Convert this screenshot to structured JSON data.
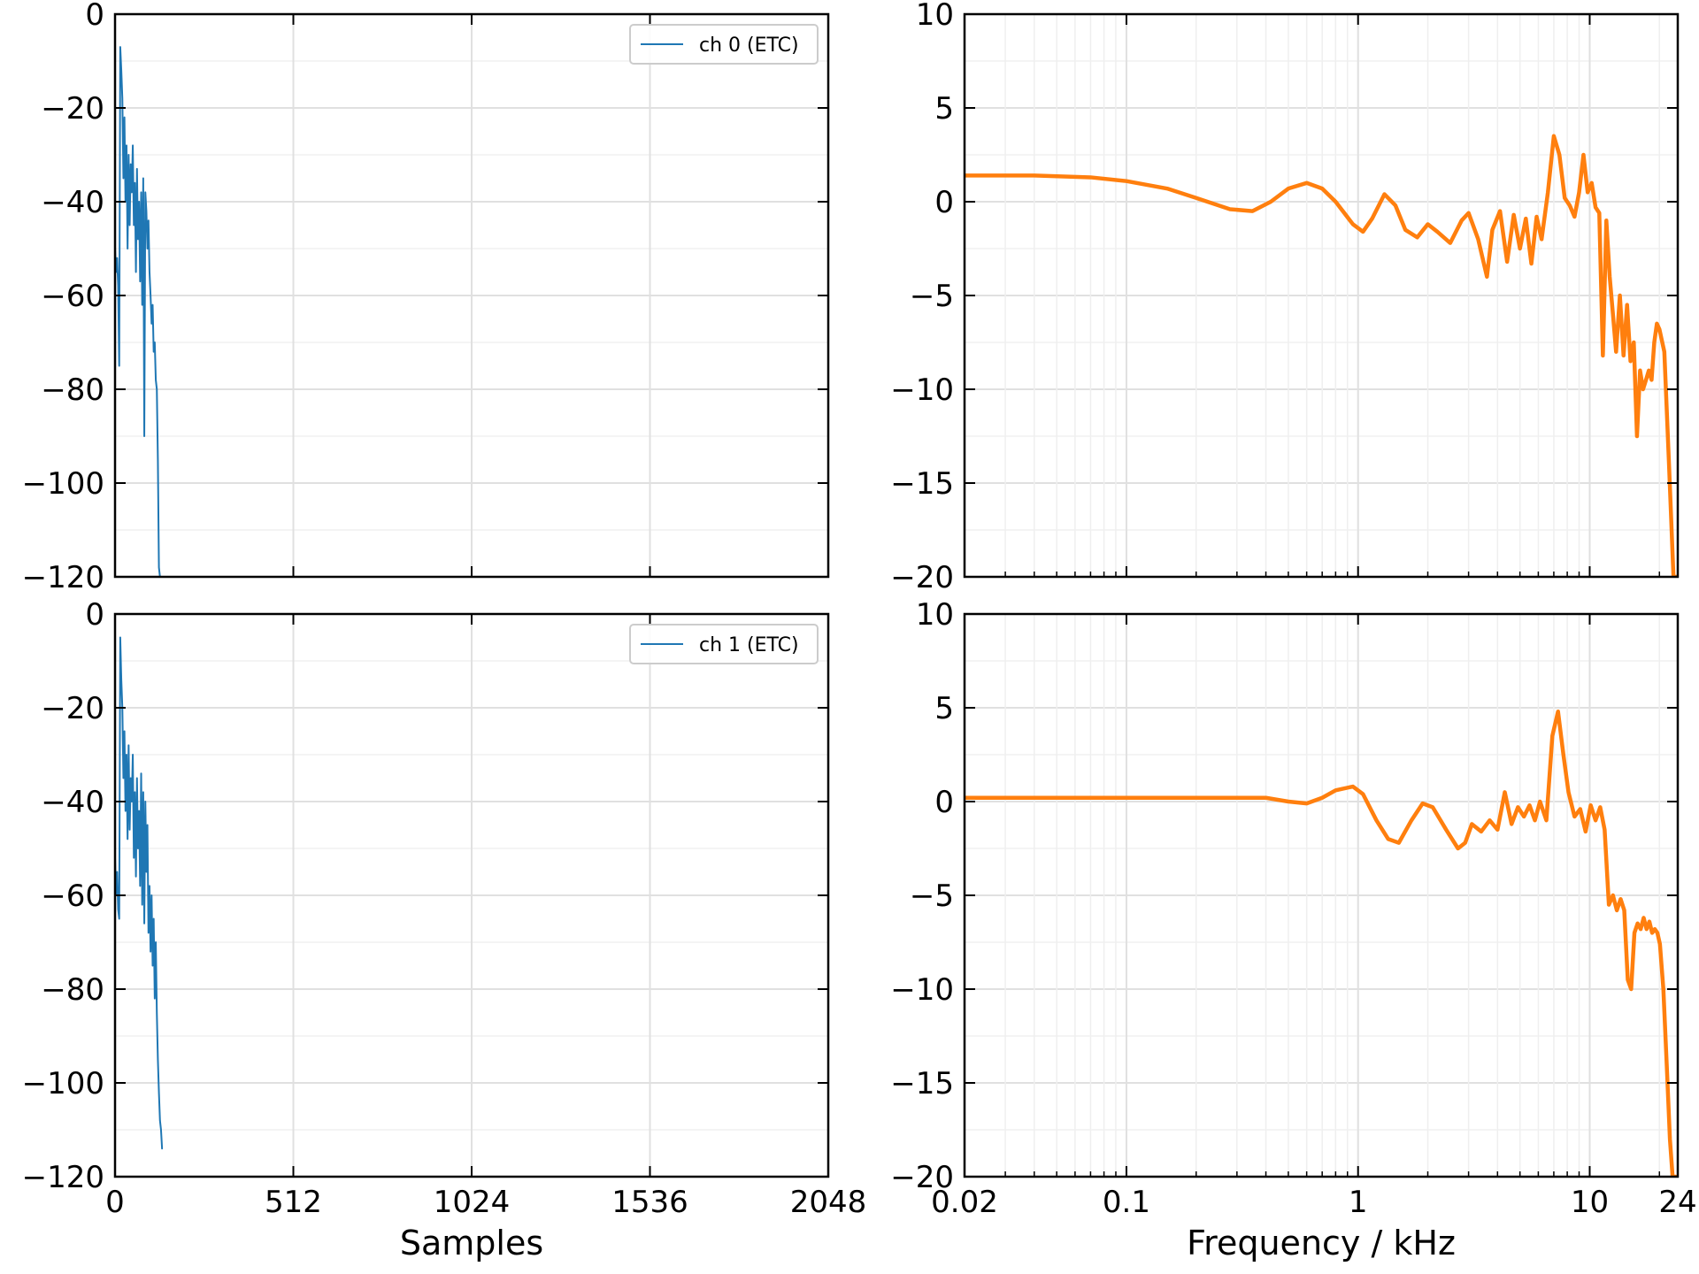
{
  "figure": {
    "rows": 2,
    "cols": 2,
    "sharex": true
  },
  "colors": {
    "etc": "#1f77b4",
    "freq": "#ff7f0e",
    "grid": "#e6e6e6",
    "frame": "#000000"
  },
  "chart_data": [
    {
      "id": "etc-ch0",
      "type": "line",
      "xscale": "linear",
      "xlim": [
        0,
        2048
      ],
      "ylim": [
        -120,
        0
      ],
      "xticks": [
        0,
        512,
        1024,
        1536,
        2048
      ],
      "yticks": [
        0,
        -20,
        -40,
        -60,
        -80,
        -100,
        -120
      ],
      "ytick_labels": [
        "0",
        "−20",
        "−40",
        "−60",
        "−80",
        "−100",
        "−120"
      ],
      "show_xticklabels": false,
      "xlabel": "",
      "ylabel": "",
      "grid": true,
      "legend": {
        "placement": "top-right",
        "entries": [
          "ch 0 (ETC)"
        ]
      },
      "series": [
        {
          "name": "ch 0 (ETC)",
          "color": "#1f77b4",
          "x": [
            0,
            3,
            6,
            9,
            12,
            15,
            18,
            21,
            24,
            27,
            30,
            33,
            36,
            39,
            42,
            45,
            48,
            51,
            54,
            57,
            60,
            63,
            66,
            69,
            72,
            75,
            78,
            81,
            84,
            87,
            90,
            93,
            96,
            99,
            102,
            105,
            108,
            111,
            114,
            117,
            120,
            123,
            126,
            129,
            132,
            135
          ],
          "y": [
            -50,
            -55,
            -52,
            -58,
            -75,
            -7,
            -12,
            -18,
            -35,
            -22,
            -40,
            -28,
            -50,
            -30,
            -45,
            -32,
            -38,
            -28,
            -45,
            -36,
            -55,
            -33,
            -48,
            -40,
            -57,
            -38,
            -62,
            -35,
            -90,
            -38,
            -42,
            -50,
            -44,
            -55,
            -60,
            -66,
            -62,
            -72,
            -70,
            -78,
            -80,
            -95,
            -118,
            -120,
            -120,
            -120
          ]
        }
      ]
    },
    {
      "id": "freq-ch0",
      "type": "line",
      "xscale": "log",
      "xlim": [
        0.02,
        24
      ],
      "ylim": [
        -20,
        10
      ],
      "xticks": [
        0.02,
        0.1,
        1,
        10,
        24
      ],
      "yticks": [
        10,
        5,
        0,
        -5,
        -10,
        -15,
        -20
      ],
      "ytick_labels": [
        "10",
        "5",
        "0",
        "−5",
        "−10",
        "−15",
        "−20"
      ],
      "show_xticklabels": false,
      "xlabel": "",
      "ylabel": "",
      "grid": true,
      "series": [
        {
          "name": "",
          "color": "#ff7f0e",
          "x": [
            0.02,
            0.04,
            0.07,
            0.1,
            0.15,
            0.2,
            0.28,
            0.35,
            0.42,
            0.5,
            0.6,
            0.7,
            0.8,
            0.95,
            1.05,
            1.15,
            1.3,
            1.45,
            1.6,
            1.8,
            2.0,
            2.2,
            2.5,
            2.8,
            3.0,
            3.3,
            3.6,
            3.8,
            4.1,
            4.4,
            4.7,
            5.0,
            5.3,
            5.6,
            5.9,
            6.2,
            6.6,
            7.0,
            7.4,
            7.8,
            8.2,
            8.6,
            9.0,
            9.4,
            9.8,
            10.2,
            10.6,
            11.0,
            11.4,
            11.8,
            12.2,
            12.6,
            13.0,
            13.5,
            14.0,
            14.5,
            15.0,
            15.5,
            16.0,
            16.5,
            17.0,
            17.5,
            18.0,
            18.5,
            19.0,
            19.5,
            20.0,
            21.0,
            22.0,
            23.0,
            23.8
          ],
          "y": [
            1.4,
            1.4,
            1.3,
            1.1,
            0.7,
            0.2,
            -0.4,
            -0.5,
            0.0,
            0.7,
            1.0,
            0.7,
            0.0,
            -1.2,
            -1.6,
            -0.9,
            0.4,
            -0.2,
            -1.5,
            -1.9,
            -1.2,
            -1.6,
            -2.2,
            -1.0,
            -0.6,
            -2.0,
            -4.0,
            -1.5,
            -0.5,
            -3.2,
            -0.7,
            -2.5,
            -0.9,
            -3.3,
            -0.8,
            -2.0,
            0.5,
            3.5,
            2.5,
            0.2,
            -0.2,
            -0.8,
            0.5,
            2.5,
            0.5,
            1.0,
            -0.3,
            -0.6,
            -8.2,
            -1.0,
            -4.0,
            -6.0,
            -8.0,
            -5.0,
            -8.2,
            -5.5,
            -8.5,
            -7.5,
            -12.5,
            -9.0,
            -10.0,
            -9.5,
            -9.0,
            -9.5,
            -7.5,
            -6.5,
            -6.8,
            -8.0,
            -14.0,
            -20.0,
            -20.0
          ]
        }
      ]
    },
    {
      "id": "etc-ch1",
      "type": "line",
      "xscale": "linear",
      "xlim": [
        0,
        2048
      ],
      "ylim": [
        -120,
        0
      ],
      "xticks": [
        0,
        512,
        1024,
        1536,
        2048
      ],
      "yticks": [
        0,
        -20,
        -40,
        -60,
        -80,
        -100,
        -120
      ],
      "ytick_labels": [
        "0",
        "−20",
        "−40",
        "−60",
        "−80",
        "−100",
        "−120"
      ],
      "xtick_labels": [
        "0",
        "512",
        "1024",
        "1536",
        "2048"
      ],
      "show_xticklabels": true,
      "xlabel": "Samples",
      "ylabel": "",
      "grid": true,
      "legend": {
        "placement": "top-right",
        "entries": [
          "ch 1 (ETC)"
        ]
      },
      "series": [
        {
          "name": "ch 1 (ETC)",
          "color": "#1f77b4",
          "x": [
            0,
            3,
            6,
            9,
            12,
            15,
            18,
            21,
            24,
            27,
            30,
            33,
            36,
            39,
            42,
            45,
            48,
            51,
            54,
            57,
            60,
            63,
            66,
            69,
            72,
            75,
            78,
            81,
            84,
            87,
            90,
            93,
            96,
            99,
            102,
            105,
            108,
            111,
            114,
            117,
            120,
            123,
            126,
            129,
            132,
            135
          ],
          "y": [
            -52,
            -60,
            -55,
            -63,
            -65,
            -5,
            -14,
            -20,
            -35,
            -25,
            -42,
            -30,
            -48,
            -28,
            -46,
            -35,
            -40,
            -30,
            -52,
            -38,
            -56,
            -35,
            -50,
            -42,
            -58,
            -34,
            -62,
            -38,
            -66,
            -40,
            -55,
            -45,
            -68,
            -58,
            -72,
            -60,
            -75,
            -65,
            -82,
            -70,
            -85,
            -95,
            -102,
            -108,
            -110,
            -114
          ]
        }
      ]
    },
    {
      "id": "freq-ch1",
      "type": "line",
      "xscale": "log",
      "xlim": [
        0.02,
        24
      ],
      "ylim": [
        -20,
        10
      ],
      "xticks": [
        0.02,
        0.1,
        1,
        10,
        24
      ],
      "yticks": [
        10,
        5,
        0,
        -5,
        -10,
        -15,
        -20
      ],
      "ytick_labels": [
        "10",
        "5",
        "0",
        "−5",
        "−10",
        "−15",
        "−20"
      ],
      "xtick_labels": [
        "0.02",
        "0.1",
        "1",
        "10",
        "24"
      ],
      "show_xticklabels": true,
      "xlabel": "Frequency / kHz",
      "ylabel": "",
      "grid": true,
      "series": [
        {
          "name": "",
          "color": "#ff7f0e",
          "x": [
            0.02,
            0.05,
            0.1,
            0.2,
            0.3,
            0.4,
            0.5,
            0.6,
            0.7,
            0.8,
            0.95,
            1.05,
            1.2,
            1.35,
            1.5,
            1.7,
            1.9,
            2.1,
            2.4,
            2.7,
            2.9,
            3.1,
            3.4,
            3.7,
            4.0,
            4.3,
            4.6,
            4.9,
            5.2,
            5.5,
            5.8,
            6.1,
            6.5,
            6.9,
            7.3,
            7.7,
            8.1,
            8.6,
            9.1,
            9.6,
            10.1,
            10.6,
            11.1,
            11.6,
            12.1,
            12.6,
            13.1,
            13.6,
            14.1,
            14.6,
            15.1,
            15.6,
            16.1,
            16.6,
            17.1,
            17.6,
            18.1,
            18.6,
            19.1,
            19.6,
            20.1,
            20.8,
            21.5,
            22.2,
            22.8,
            23.5
          ],
          "y": [
            0.2,
            0.2,
            0.2,
            0.2,
            0.2,
            0.2,
            0.0,
            -0.1,
            0.2,
            0.6,
            0.8,
            0.4,
            -1.0,
            -2.0,
            -2.2,
            -1.0,
            -0.1,
            -0.3,
            -1.5,
            -2.5,
            -2.2,
            -1.2,
            -1.6,
            -1.0,
            -1.5,
            0.5,
            -1.2,
            -0.3,
            -0.8,
            -0.2,
            -1.0,
            0.0,
            -1.0,
            3.5,
            4.8,
            2.5,
            0.5,
            -0.8,
            -0.4,
            -1.6,
            -0.2,
            -1.0,
            -0.3,
            -1.5,
            -5.5,
            -5.0,
            -5.8,
            -5.2,
            -5.8,
            -9.5,
            -10.0,
            -7.0,
            -6.5,
            -6.8,
            -6.2,
            -6.8,
            -6.4,
            -7.0,
            -6.8,
            -7.0,
            -7.6,
            -10.0,
            -14.0,
            -18.0,
            -20.0,
            -20.0
          ]
        }
      ]
    }
  ]
}
